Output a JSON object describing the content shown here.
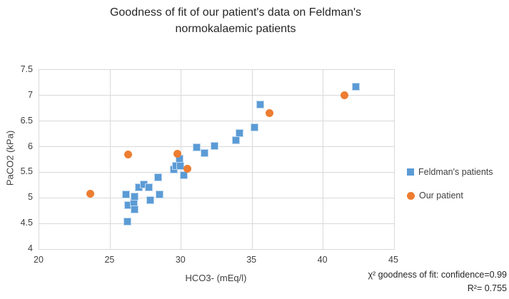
{
  "title": {
    "line1": "Goodness of fit of our patient's data on Feldman's",
    "line2": "normokalaemic patients"
  },
  "colors": {
    "feldman_fill": "#5b9bd5",
    "feldman_border": "#bdd7ee",
    "our_patient_fill": "#ed7d31",
    "gridline": "#d9d9d9"
  },
  "chart_data": {
    "type": "scatter",
    "title": "Goodness of fit of our patient's data on Feldman's normokalaemic patients",
    "xlabel": "HCO3- (mEq/l)",
    "ylabel": "PaCO2 (kPa)",
    "xlim": [
      20,
      45
    ],
    "ylim": [
      4,
      7.5
    ],
    "x_ticks": [
      20,
      25,
      30,
      35,
      40,
      45
    ],
    "x_tick_labels": [
      "20",
      "25",
      "30",
      "35",
      "40",
      "45"
    ],
    "y_ticks": [
      7.5,
      7,
      6.5,
      6,
      5.5,
      5,
      4.5,
      4
    ],
    "y_tick_labels": [
      "7.5",
      "7",
      "6.5",
      "6",
      "5.5",
      "5",
      "4.5",
      "4"
    ],
    "grid": true,
    "legend_position": "right",
    "series": [
      {
        "name": "Feldman's patients",
        "marker": "square",
        "color": "#5b9bd5",
        "points": [
          [
            26.2,
            4.53
          ],
          [
            26.1,
            5.06
          ],
          [
            26.25,
            4.86
          ],
          [
            26.65,
            4.9
          ],
          [
            26.7,
            4.78
          ],
          [
            26.7,
            5.02
          ],
          [
            27.0,
            5.21
          ],
          [
            27.35,
            5.26
          ],
          [
            27.7,
            5.21
          ],
          [
            27.8,
            4.95
          ],
          [
            28.4,
            5.4
          ],
          [
            28.5,
            5.06
          ],
          [
            29.5,
            5.56
          ],
          [
            29.65,
            5.62
          ],
          [
            29.95,
            5.62
          ],
          [
            29.9,
            5.77
          ],
          [
            30.2,
            5.45
          ],
          [
            31.1,
            5.99
          ],
          [
            31.65,
            5.88
          ],
          [
            32.35,
            6.01
          ],
          [
            33.85,
            6.13
          ],
          [
            34.1,
            6.26
          ],
          [
            35.15,
            6.38
          ],
          [
            35.55,
            6.83
          ],
          [
            42.3,
            7.17
          ]
        ]
      },
      {
        "name": "Our patient",
        "marker": "circle",
        "color": "#ed7d31",
        "points": [
          [
            23.6,
            5.08
          ],
          [
            26.25,
            5.85
          ],
          [
            29.75,
            5.86
          ],
          [
            30.45,
            5.57
          ],
          [
            36.2,
            6.65
          ],
          [
            41.5,
            7.0
          ]
        ]
      }
    ],
    "annotations": [
      "χ² goodness of fit: confidence=0.99",
      "R²= 0.755"
    ]
  }
}
